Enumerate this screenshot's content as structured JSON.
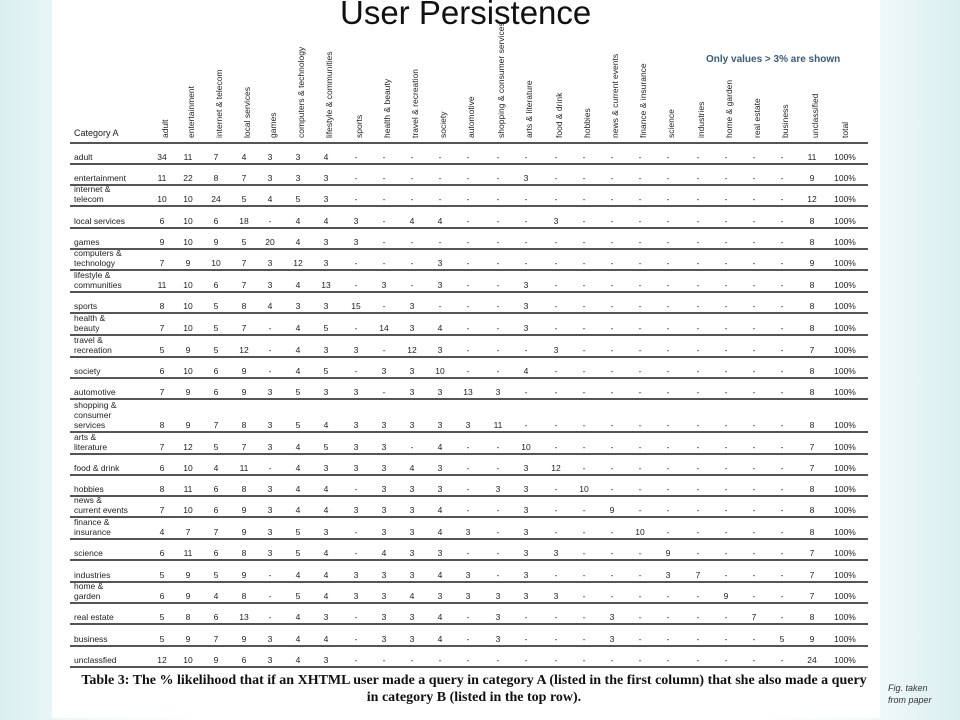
{
  "slide": {
    "title": "User Persistence",
    "note": "Only values > 3% are shown",
    "corner_note": [
      "Fig. taken",
      "from paper"
    ]
  },
  "table": {
    "row_header": "Category A",
    "columns": [
      "adult",
      "entertainment",
      "internet & telecom",
      "local services",
      "games",
      "computers & technology",
      "lifestyle & communities",
      "sports",
      "health & beauty",
      "travel & recreation",
      "society",
      "automotive",
      "shopping & consumer services",
      "arts & literature",
      "food & drink",
      "hobbies",
      "news & current events",
      "finance & insurance",
      "science",
      "industries",
      "home & garden",
      "real estate",
      "business",
      "unclassified",
      "total"
    ],
    "rows": [
      {
        "label": [
          "adult"
        ],
        "values": [
          "34",
          "11",
          "7",
          "4",
          "3",
          "3",
          "4",
          "-",
          "-",
          "-",
          "-",
          "-",
          "-",
          "-",
          "-",
          "-",
          "-",
          "-",
          "-",
          "-",
          "-",
          "-",
          "-",
          "11",
          "100%"
        ]
      },
      {
        "label": [
          "entertainment"
        ],
        "values": [
          "11",
          "22",
          "8",
          "7",
          "3",
          "3",
          "3",
          "-",
          "-",
          "-",
          "-",
          "-",
          "-",
          "3",
          "-",
          "-",
          "-",
          "-",
          "-",
          "-",
          "-",
          "-",
          "-",
          "9",
          "100%"
        ]
      },
      {
        "label": [
          "internet &",
          "telecom"
        ],
        "values": [
          "10",
          "10",
          "24",
          "5",
          "4",
          "5",
          "3",
          "-",
          "-",
          "-",
          "-",
          "-",
          "-",
          "-",
          "-",
          "-",
          "-",
          "-",
          "-",
          "-",
          "-",
          "-",
          "-",
          "12",
          "100%"
        ]
      },
      {
        "label": [
          "local services"
        ],
        "values": [
          "6",
          "10",
          "6",
          "18",
          "-",
          "4",
          "4",
          "3",
          "-",
          "4",
          "4",
          "-",
          "-",
          "-",
          "3",
          "-",
          "-",
          "-",
          "-",
          "-",
          "-",
          "-",
          "-",
          "8",
          "100%"
        ]
      },
      {
        "label": [
          "games"
        ],
        "values": [
          "9",
          "10",
          "9",
          "5",
          "20",
          "4",
          "3",
          "3",
          "-",
          "-",
          "-",
          "-",
          "-",
          "-",
          "-",
          "-",
          "-",
          "-",
          "-",
          "-",
          "-",
          "-",
          "-",
          "8",
          "100%"
        ]
      },
      {
        "label": [
          "computers &",
          "technology"
        ],
        "values": [
          "7",
          "9",
          "10",
          "7",
          "3",
          "12",
          "3",
          "-",
          "-",
          "-",
          "3",
          "-",
          "-",
          "-",
          "-",
          "-",
          "-",
          "-",
          "-",
          "-",
          "-",
          "-",
          "-",
          "9",
          "100%"
        ]
      },
      {
        "label": [
          "lifestyle &",
          "communities"
        ],
        "values": [
          "11",
          "10",
          "6",
          "7",
          "3",
          "4",
          "13",
          "-",
          "3",
          "-",
          "3",
          "-",
          "-",
          "3",
          "-",
          "-",
          "-",
          "-",
          "-",
          "-",
          "-",
          "-",
          "-",
          "8",
          "100%"
        ]
      },
      {
        "label": [
          "sports"
        ],
        "values": [
          "8",
          "10",
          "5",
          "8",
          "4",
          "3",
          "3",
          "15",
          "-",
          "3",
          "-",
          "-",
          "-",
          "3",
          "-",
          "-",
          "-",
          "-",
          "-",
          "-",
          "-",
          "-",
          "-",
          "8",
          "100%"
        ]
      },
      {
        "label": [
          "health &",
          "beauty"
        ],
        "values": [
          "7",
          "10",
          "5",
          "7",
          "-",
          "4",
          "5",
          "-",
          "14",
          "3",
          "4",
          "-",
          "-",
          "3",
          "-",
          "-",
          "-",
          "-",
          "-",
          "-",
          "-",
          "-",
          "-",
          "8",
          "100%"
        ]
      },
      {
        "label": [
          "travel &",
          "recreation"
        ],
        "values": [
          "5",
          "9",
          "5",
          "12",
          "-",
          "4",
          "3",
          "3",
          "-",
          "12",
          "3",
          "-",
          "-",
          "-",
          "3",
          "-",
          "-",
          "-",
          "-",
          "-",
          "-",
          "-",
          "-",
          "7",
          "100%"
        ]
      },
      {
        "label": [
          "society"
        ],
        "values": [
          "6",
          "10",
          "6",
          "9",
          "-",
          "4",
          "5",
          "-",
          "3",
          "3",
          "10",
          "-",
          "-",
          "4",
          "-",
          "-",
          "-",
          "-",
          "-",
          "-",
          "-",
          "-",
          "-",
          "8",
          "100%"
        ]
      },
      {
        "label": [
          "automotive"
        ],
        "values": [
          "7",
          "9",
          "6",
          "9",
          "3",
          "5",
          "3",
          "3",
          "-",
          "3",
          "3",
          "13",
          "3",
          "-",
          "-",
          "-",
          "-",
          "-",
          "-",
          "-",
          "-",
          "-",
          "-",
          "8",
          "100%"
        ]
      },
      {
        "label": [
          "shopping &",
          "consumer",
          "services"
        ],
        "values": [
          "8",
          "9",
          "7",
          "8",
          "3",
          "5",
          "4",
          "3",
          "3",
          "3",
          "3",
          "3",
          "11",
          "-",
          "-",
          "-",
          "-",
          "-",
          "-",
          "-",
          "-",
          "-",
          "-",
          "8",
          "100%"
        ]
      },
      {
        "label": [
          "arts &",
          "literature"
        ],
        "values": [
          "7",
          "12",
          "5",
          "7",
          "3",
          "4",
          "5",
          "3",
          "3",
          "-",
          "4",
          "-",
          "-",
          "10",
          "-",
          "-",
          "-",
          "-",
          "-",
          "-",
          "-",
          "-",
          "-",
          "7",
          "100%"
        ]
      },
      {
        "label": [
          "food & drink"
        ],
        "values": [
          "6",
          "10",
          "4",
          "11",
          "-",
          "4",
          "3",
          "3",
          "3",
          "4",
          "3",
          "-",
          "-",
          "3",
          "12",
          "-",
          "-",
          "-",
          "-",
          "-",
          "-",
          "-",
          "-",
          "7",
          "100%"
        ]
      },
      {
        "label": [
          "hobbies"
        ],
        "values": [
          "8",
          "11",
          "6",
          "8",
          "3",
          "4",
          "4",
          "-",
          "3",
          "3",
          "3",
          "-",
          "3",
          "3",
          "-",
          "10",
          "-",
          "-",
          "-",
          "-",
          "-",
          "-",
          "-",
          "8",
          "100%"
        ]
      },
      {
        "label": [
          "news &",
          "current events"
        ],
        "values": [
          "7",
          "10",
          "6",
          "9",
          "3",
          "4",
          "4",
          "3",
          "3",
          "3",
          "4",
          "-",
          "-",
          "3",
          "-",
          "-",
          "9",
          "-",
          "-",
          "-",
          "-",
          "-",
          "-",
          "8",
          "100%"
        ]
      },
      {
        "label": [
          "finance &",
          "insurance"
        ],
        "values": [
          "4",
          "7",
          "7",
          "9",
          "3",
          "5",
          "3",
          "-",
          "3",
          "3",
          "4",
          "3",
          "-",
          "3",
          "-",
          "-",
          "-",
          "10",
          "-",
          "-",
          "-",
          "-",
          "-",
          "8",
          "100%"
        ]
      },
      {
        "label": [
          "science"
        ],
        "values": [
          "6",
          "11",
          "6",
          "8",
          "3",
          "5",
          "4",
          "-",
          "4",
          "3",
          "3",
          "-",
          "-",
          "3",
          "3",
          "-",
          "-",
          "-",
          "9",
          "-",
          "-",
          "-",
          "-",
          "7",
          "100%"
        ]
      },
      {
        "label": [
          "industries"
        ],
        "values": [
          "5",
          "9",
          "5",
          "9",
          "-",
          "4",
          "4",
          "3",
          "3",
          "3",
          "4",
          "3",
          "-",
          "3",
          "-",
          "-",
          "-",
          "-",
          "3",
          "7",
          "-",
          "-",
          "-",
          "7",
          "100%"
        ]
      },
      {
        "label": [
          "home &",
          "garden"
        ],
        "values": [
          "6",
          "9",
          "4",
          "8",
          "-",
          "5",
          "4",
          "3",
          "3",
          "4",
          "3",
          "3",
          "3",
          "3",
          "3",
          "-",
          "-",
          "-",
          "-",
          "-",
          "9",
          "-",
          "-",
          "7",
          "100%"
        ]
      },
      {
        "label": [
          "real estate"
        ],
        "values": [
          "5",
          "8",
          "6",
          "13",
          "-",
          "4",
          "3",
          "-",
          "3",
          "3",
          "4",
          "-",
          "3",
          "-",
          "-",
          "-",
          "3",
          "-",
          "-",
          "-",
          "-",
          "7",
          "-",
          "8",
          "100%"
        ]
      },
      {
        "label": [
          "business"
        ],
        "values": [
          "5",
          "9",
          "7",
          "9",
          "3",
          "4",
          "4",
          "-",
          "3",
          "3",
          "4",
          "-",
          "3",
          "-",
          "-",
          "-",
          "3",
          "-",
          "-",
          "-",
          "-",
          "-",
          "5",
          "9",
          "100%"
        ]
      },
      {
        "label": [
          "unclassfied"
        ],
        "values": [
          "12",
          "10",
          "9",
          "6",
          "3",
          "4",
          "3",
          "-",
          "-",
          "-",
          "-",
          "-",
          "-",
          "-",
          "-",
          "-",
          "-",
          "-",
          "-",
          "-",
          "-",
          "-",
          "-",
          "24",
          "100%"
        ]
      }
    ],
    "caption": "Table 3: The % likelihood that if an XHTML user made a query in category A (listed in the first column) that she also made a query in category B (listed in the top row)."
  }
}
